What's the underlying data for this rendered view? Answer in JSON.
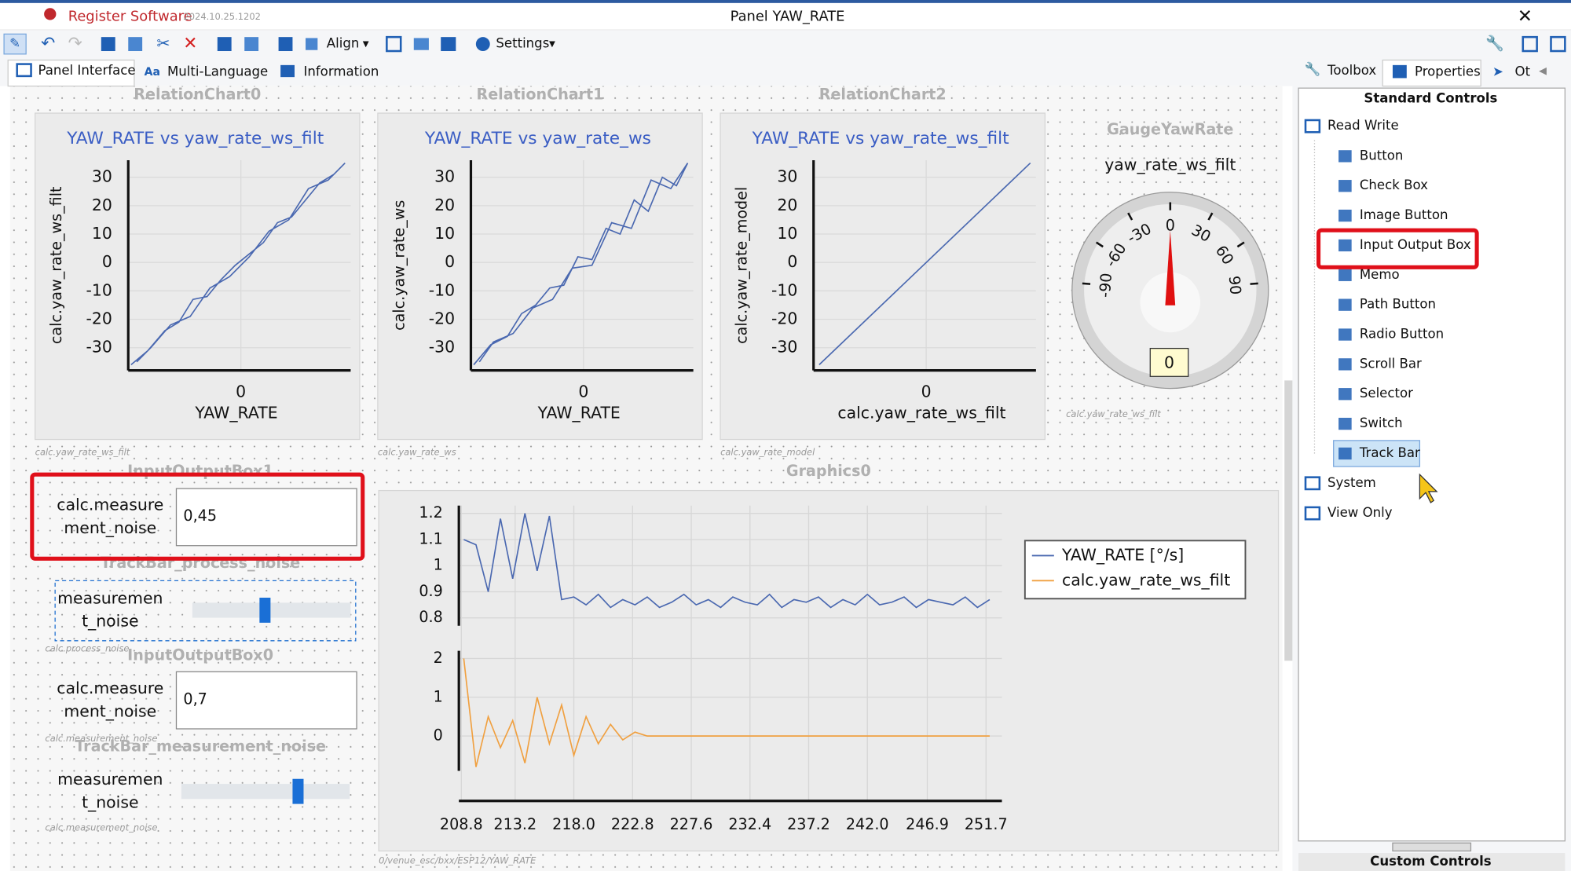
{
  "title_bar": {
    "app": "Register Software",
    "version": "2024.10.25.1202",
    "title": "Panel YAW_RATE"
  },
  "toolbar": {
    "align": "Align",
    "settings": "Settings"
  },
  "tabs": [
    "Panel Interface",
    "Multi-Language",
    "Information"
  ],
  "right_tabs": [
    "Toolbox",
    "Properties",
    "Ot"
  ],
  "toolbox": {
    "header": "Standard Controls",
    "footer": "Custom Controls",
    "groups": [
      {
        "label": "Read Write",
        "items": [
          "Button",
          "Check Box",
          "Image Button",
          "Input Output Box",
          "Memo",
          "Path Button",
          "Radio Button",
          "Scroll Bar",
          "Selector",
          "Switch",
          "Track Bar"
        ]
      },
      {
        "label": "System"
      },
      {
        "label": "View Only"
      }
    ]
  },
  "relation_charts": [
    {
      "name": "RelationChart0",
      "title": "YAW_RATE vs yaw_rate_ws_filt",
      "xlabel": "YAW_RATE",
      "ylabel": "calc.yaw_rate_ws_filt",
      "caption": "calc.yaw_rate_ws_filt",
      "xlim": [
        -40,
        39
      ],
      "ylim": [
        -38,
        36
      ],
      "xticks": [
        0
      ],
      "yticks": [
        30,
        20,
        10,
        0,
        -10,
        -20,
        -30
      ],
      "x": [
        -39,
        -33,
        -27,
        -22,
        -17,
        -12,
        -7,
        -2,
        3,
        8,
        13,
        18,
        23,
        28,
        33,
        37,
        31,
        24,
        17,
        10,
        3,
        -4,
        -11,
        -18,
        -25,
        -32,
        -37
      ],
      "y": [
        -36,
        -31,
        -24,
        -21,
        -13,
        -12,
        -6,
        -1,
        3,
        7,
        14,
        16,
        22,
        28,
        31,
        35,
        29,
        26,
        15,
        11,
        2,
        -5,
        -9,
        -19,
        -22,
        -30,
        -35
      ]
    },
    {
      "name": "RelationChart1",
      "title": "YAW_RATE vs yaw_rate_ws",
      "xlabel": "YAW_RATE",
      "ylabel": "calc.yaw_rate_ws",
      "caption": "calc.yaw_rate_ws",
      "xlim": [
        -40,
        39
      ],
      "ylim": [
        -38,
        36
      ],
      "xticks": [
        0
      ],
      "yticks": [
        30,
        20,
        10,
        0,
        -10,
        -20,
        -30
      ],
      "x": [
        -39,
        -33,
        -27,
        -22,
        -17,
        -12,
        -7,
        -2,
        3,
        8,
        13,
        18,
        23,
        28,
        33,
        37,
        31,
        24,
        17,
        10,
        3,
        -4,
        -11,
        -18,
        -25,
        -32,
        -37
      ],
      "y": [
        -36,
        -29,
        -26,
        -18,
        -15,
        -9,
        -8,
        2,
        1,
        12,
        10,
        22,
        18,
        30,
        27,
        35,
        26,
        29,
        12,
        14,
        -1,
        -2,
        -13,
        -16,
        -25,
        -28,
        -35
      ]
    },
    {
      "name": "RelationChart2",
      "title": "YAW_RATE vs yaw_rate_ws_filt",
      "xlabel": "calc.yaw_rate_ws_filt",
      "ylabel": "calc.yaw_rate_model",
      "caption": "calc.yaw_rate_model",
      "xlim": [
        -40,
        39
      ],
      "ylim": [
        -38,
        36
      ],
      "xticks": [
        0
      ],
      "yticks": [
        30,
        20,
        10,
        0,
        -10,
        -20,
        -30
      ],
      "x": [
        -38,
        37
      ],
      "y": [
        -36,
        35
      ]
    }
  ],
  "gauge": {
    "name": "GaugeYawRate",
    "label": "yaw_rate_ws_filt",
    "ticks": [
      -90,
      -60,
      -30,
      0,
      30,
      60,
      90
    ],
    "value": 0,
    "caption": "calc.yaw_rate_ws_filt"
  },
  "inputs": [
    {
      "name": "InputOutputBox1",
      "label": [
        "calc.measure",
        "ment_noise"
      ],
      "value": "0,45"
    },
    {
      "name": "TrackBar_process_noise",
      "label": [
        "measuremen",
        "t_noise"
      ],
      "caption": "calc.process_noise"
    },
    {
      "name": "InputOutputBox0",
      "label": [
        "calc.measure",
        "ment_noise"
      ],
      "value": "0,7",
      "caption": "calc.measurement_noise"
    },
    {
      "name": "TrackBar_measurement_noise",
      "label": [
        "measuremen",
        "t_noise"
      ],
      "caption": "calc.measurement_noise"
    }
  ],
  "graphics": {
    "name": "Graphics0",
    "path": "0/venue_esc/bxx/ESP12/YAW_RATE",
    "xlim": [
      208.6,
      253.0
    ],
    "xticks": [
      208.8,
      213.2,
      {
        "value": 218,
        "label": "218.0"
      },
      222.8,
      227.6,
      232.4,
      237.2,
      {
        "value": 242,
        "label": "242.0"
      },
      246.9,
      251.7
    ],
    "x": [
      209,
      210,
      211,
      212,
      213,
      214,
      215,
      216,
      217,
      218,
      219,
      220,
      221,
      222,
      223,
      224,
      225,
      226,
      227,
      228,
      229,
      230,
      231,
      232,
      233,
      234,
      235,
      236,
      237,
      238,
      239,
      240,
      241,
      242,
      243,
      244,
      245,
      246,
      247,
      248,
      249,
      250,
      251,
      252
    ],
    "series": [
      {
        "name": "YAW_RATE [°/s]",
        "color": "#4a68b0",
        "ylim": [
          0.77,
          1.23
        ],
        "yticks": [
          1.2,
          1.1,
          1,
          0.9,
          0.8
        ],
        "values": [
          1.1,
          1.08,
          0.9,
          1.18,
          0.95,
          1.2,
          0.98,
          1.19,
          0.87,
          0.88,
          0.85,
          0.89,
          0.84,
          0.87,
          0.85,
          0.88,
          0.84,
          0.86,
          0.89,
          0.85,
          0.87,
          0.84,
          0.88,
          0.86,
          0.85,
          0.89,
          0.84,
          0.87,
          0.86,
          0.88,
          0.84,
          0.87,
          0.85,
          0.89,
          0.85,
          0.86,
          0.88,
          0.84,
          0.87,
          0.86,
          0.85,
          0.88,
          0.84,
          0.87
        ]
      },
      {
        "name": "calc.yaw_rate_ws_filt",
        "color": "#f0a040",
        "ylim": [
          -0.9,
          2.2
        ],
        "yticks": [
          2,
          1,
          0
        ],
        "values": [
          2,
          -0.8,
          0.5,
          -0.3,
          0.4,
          -0.7,
          1.0,
          -0.2,
          0.8,
          -0.5,
          0.5,
          -0.2,
          0.3,
          -0.1,
          0.1,
          0,
          0,
          0,
          0,
          0,
          0,
          0,
          0,
          0,
          0,
          0,
          0,
          0,
          0,
          0,
          0,
          0,
          0,
          0,
          0,
          0,
          0,
          0,
          0,
          0,
          0,
          0,
          0,
          0
        ]
      }
    ]
  }
}
